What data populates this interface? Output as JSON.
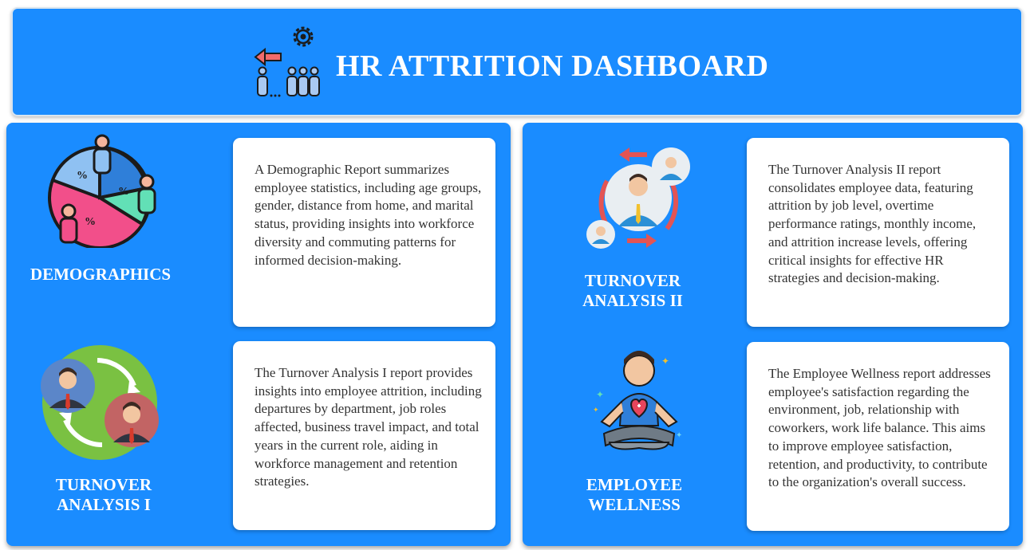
{
  "header": {
    "title": "HR ATTRITION DASHBOARD"
  },
  "sections": {
    "demographics": {
      "title": "DEMOGRAPHICS",
      "description": "A Demographic Report summarizes employee statistics, including age groups, gender, distance from home, and marital status, providing insights into workforce diversity and commuting patterns for informed decision-making."
    },
    "turnover_1": {
      "title_line1": "TURNOVER",
      "title_line2": "ANALYSIS I",
      "description": "The Turnover Analysis I report provides insights into employee attrition, including departures by department, job roles affected, business travel impact, and total years in the current role, aiding in workforce management and retention strategies."
    },
    "turnover_2": {
      "title_line1": "TURNOVER",
      "title_line2": "ANALYSIS II",
      "description": "The Turnover Analysis II report consolidates employee data, featuring attrition by job level, overtime performance ratings, monthly income, and attrition increase levels, offering critical insights for effective HR strategies and decision-making."
    },
    "wellness": {
      "title_line1": "EMPLOYEE",
      "title_line2": "WELLNESS",
      "description": "The Employee Wellness report addresses employee's satisfaction regarding the environment, job, relationship with coworkers, work life balance. This aims to improve employee satisfaction, retention, and productivity, to contribute to the organization's overall success."
    }
  },
  "colors": {
    "background_blue": "#1a8cff",
    "card_white": "#ffffff",
    "text_dark": "#333333"
  },
  "icons": [
    "attrition-icon",
    "demographics-pie-icon",
    "turnover-cycle-icon",
    "job-level-cycle-icon",
    "wellness-meditation-icon"
  ]
}
